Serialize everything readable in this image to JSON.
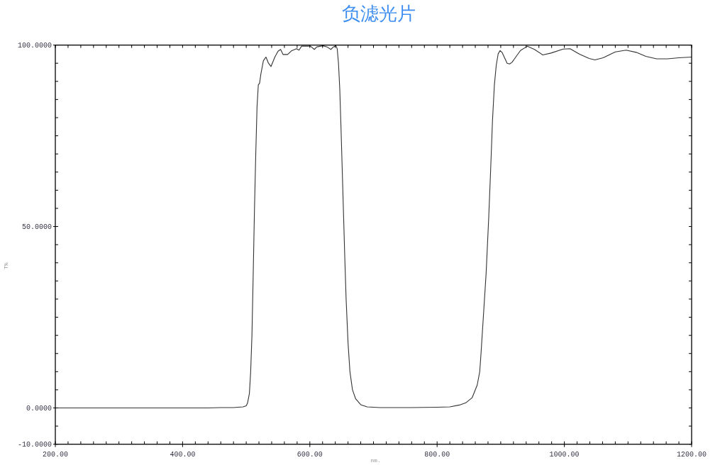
{
  "chart_data": {
    "type": "line",
    "title": "负滤光片",
    "xlabel": "nm.",
    "ylabel": "T%",
    "color": "#333333",
    "x": [
      200,
      300,
      400,
      440,
      460,
      480,
      495,
      500,
      502,
      505,
      507,
      509,
      511,
      513,
      515,
      517,
      519,
      521,
      523,
      527,
      531,
      535,
      539,
      545,
      550,
      554,
      558,
      565,
      571,
      579,
      583,
      587,
      593,
      601,
      607,
      611,
      617,
      621,
      627,
      633,
      637,
      641,
      643,
      645,
      647,
      649,
      651,
      653,
      655,
      657,
      660,
      663,
      667,
      672,
      680,
      690,
      710,
      760,
      800,
      820,
      835,
      845,
      855,
      863,
      867,
      869,
      873,
      877,
      881,
      884,
      887,
      890,
      893,
      896,
      899,
      902,
      905,
      910,
      914,
      918,
      922,
      931,
      942,
      953,
      966,
      979,
      998,
      1009,
      1024,
      1039,
      1048,
      1061,
      1080,
      1097,
      1113,
      1128,
      1145,
      1162,
      1180,
      1200
    ],
    "values": [
      0,
      0,
      0,
      0,
      0.1,
      0.1,
      0.3,
      0.6,
      1.3,
      4,
      10,
      20,
      37,
      55,
      70,
      83,
      89,
      89.5,
      92,
      95.7,
      96.7,
      95.0,
      94.1,
      96.7,
      98.3,
      98.8,
      97.4,
      97.4,
      98.4,
      99.0,
      98.6,
      99.7,
      99.7,
      99.7,
      98.8,
      99.5,
      99.7,
      99.8,
      99.5,
      98.8,
      99.5,
      99.8,
      99.0,
      95,
      88,
      77,
      65,
      53,
      41,
      30,
      18,
      10,
      5,
      2.5,
      0.9,
      0.3,
      0.1,
      0.1,
      0.2,
      0.3,
      0.8,
      1.4,
      2.8,
      6.3,
      10,
      15,
      26,
      37,
      52,
      65,
      79,
      89,
      94.5,
      97.6,
      98.5,
      98.0,
      96.9,
      95.0,
      94.8,
      95.3,
      96.3,
      98.5,
      99.7,
      98.8,
      97.3,
      97.8,
      98.9,
      99.0,
      97.5,
      96.3,
      95.9,
      96.5,
      98.1,
      98.6,
      98.0,
      96.9,
      96.2,
      96.2,
      96.5,
      96.7
    ],
    "xlim": [
      200,
      1200
    ],
    "ylim": [
      -10,
      100
    ],
    "xticks": [
      {
        "value": 200,
        "label": "200.00"
      },
      {
        "value": 220,
        "label": null
      },
      {
        "value": 240,
        "label": null
      },
      {
        "value": 260,
        "label": null
      },
      {
        "value": 280,
        "label": null
      },
      {
        "value": 300,
        "label": null
      },
      {
        "value": 320,
        "label": null
      },
      {
        "value": 340,
        "label": null
      },
      {
        "value": 360,
        "label": null
      },
      {
        "value": 380,
        "label": null
      },
      {
        "value": 400,
        "label": "400.00"
      },
      {
        "value": 420,
        "label": null
      },
      {
        "value": 440,
        "label": null
      },
      {
        "value": 460,
        "label": null
      },
      {
        "value": 480,
        "label": null
      },
      {
        "value": 500,
        "label": null
      },
      {
        "value": 520,
        "label": null
      },
      {
        "value": 540,
        "label": null
      },
      {
        "value": 560,
        "label": null
      },
      {
        "value": 580,
        "label": null
      },
      {
        "value": 600,
        "label": "600.00"
      },
      {
        "value": 620,
        "label": null
      },
      {
        "value": 640,
        "label": null
      },
      {
        "value": 660,
        "label": null
      },
      {
        "value": 680,
        "label": null
      },
      {
        "value": 700,
        "label": null
      },
      {
        "value": 720,
        "label": null
      },
      {
        "value": 740,
        "label": null
      },
      {
        "value": 760,
        "label": null
      },
      {
        "value": 780,
        "label": null
      },
      {
        "value": 800,
        "label": "800.00"
      },
      {
        "value": 820,
        "label": null
      },
      {
        "value": 840,
        "label": null
      },
      {
        "value": 860,
        "label": null
      },
      {
        "value": 880,
        "label": null
      },
      {
        "value": 900,
        "label": null
      },
      {
        "value": 920,
        "label": null
      },
      {
        "value": 940,
        "label": null
      },
      {
        "value": 960,
        "label": null
      },
      {
        "value": 980,
        "label": null
      },
      {
        "value": 1000,
        "label": "1000.00"
      },
      {
        "value": 1020,
        "label": null
      },
      {
        "value": 1040,
        "label": null
      },
      {
        "value": 1060,
        "label": null
      },
      {
        "value": 1080,
        "label": null
      },
      {
        "value": 1100,
        "label": null
      },
      {
        "value": 1120,
        "label": null
      },
      {
        "value": 1140,
        "label": null
      },
      {
        "value": 1160,
        "label": null
      },
      {
        "value": 1180,
        "label": null
      },
      {
        "value": 1200,
        "label": "1200.00"
      }
    ],
    "yticks": [
      {
        "value": -10,
        "label": "-10.0000"
      },
      {
        "value": -5,
        "label": null
      },
      {
        "value": 0,
        "label": "0.0000"
      },
      {
        "value": 5,
        "label": null
      },
      {
        "value": 10,
        "label": null
      },
      {
        "value": 15,
        "label": null
      },
      {
        "value": 20,
        "label": null
      },
      {
        "value": 25,
        "label": null
      },
      {
        "value": 30,
        "label": null
      },
      {
        "value": 35,
        "label": null
      },
      {
        "value": 40,
        "label": null
      },
      {
        "value": 45,
        "label": null
      },
      {
        "value": 50,
        "label": "50.0000"
      },
      {
        "value": 55,
        "label": null
      },
      {
        "value": 60,
        "label": null
      },
      {
        "value": 65,
        "label": null
      },
      {
        "value": 70,
        "label": null
      },
      {
        "value": 75,
        "label": null
      },
      {
        "value": 80,
        "label": null
      },
      {
        "value": 85,
        "label": null
      },
      {
        "value": 90,
        "label": null
      },
      {
        "value": 95,
        "label": null
      },
      {
        "value": 100,
        "label": "100.0000"
      }
    ]
  }
}
